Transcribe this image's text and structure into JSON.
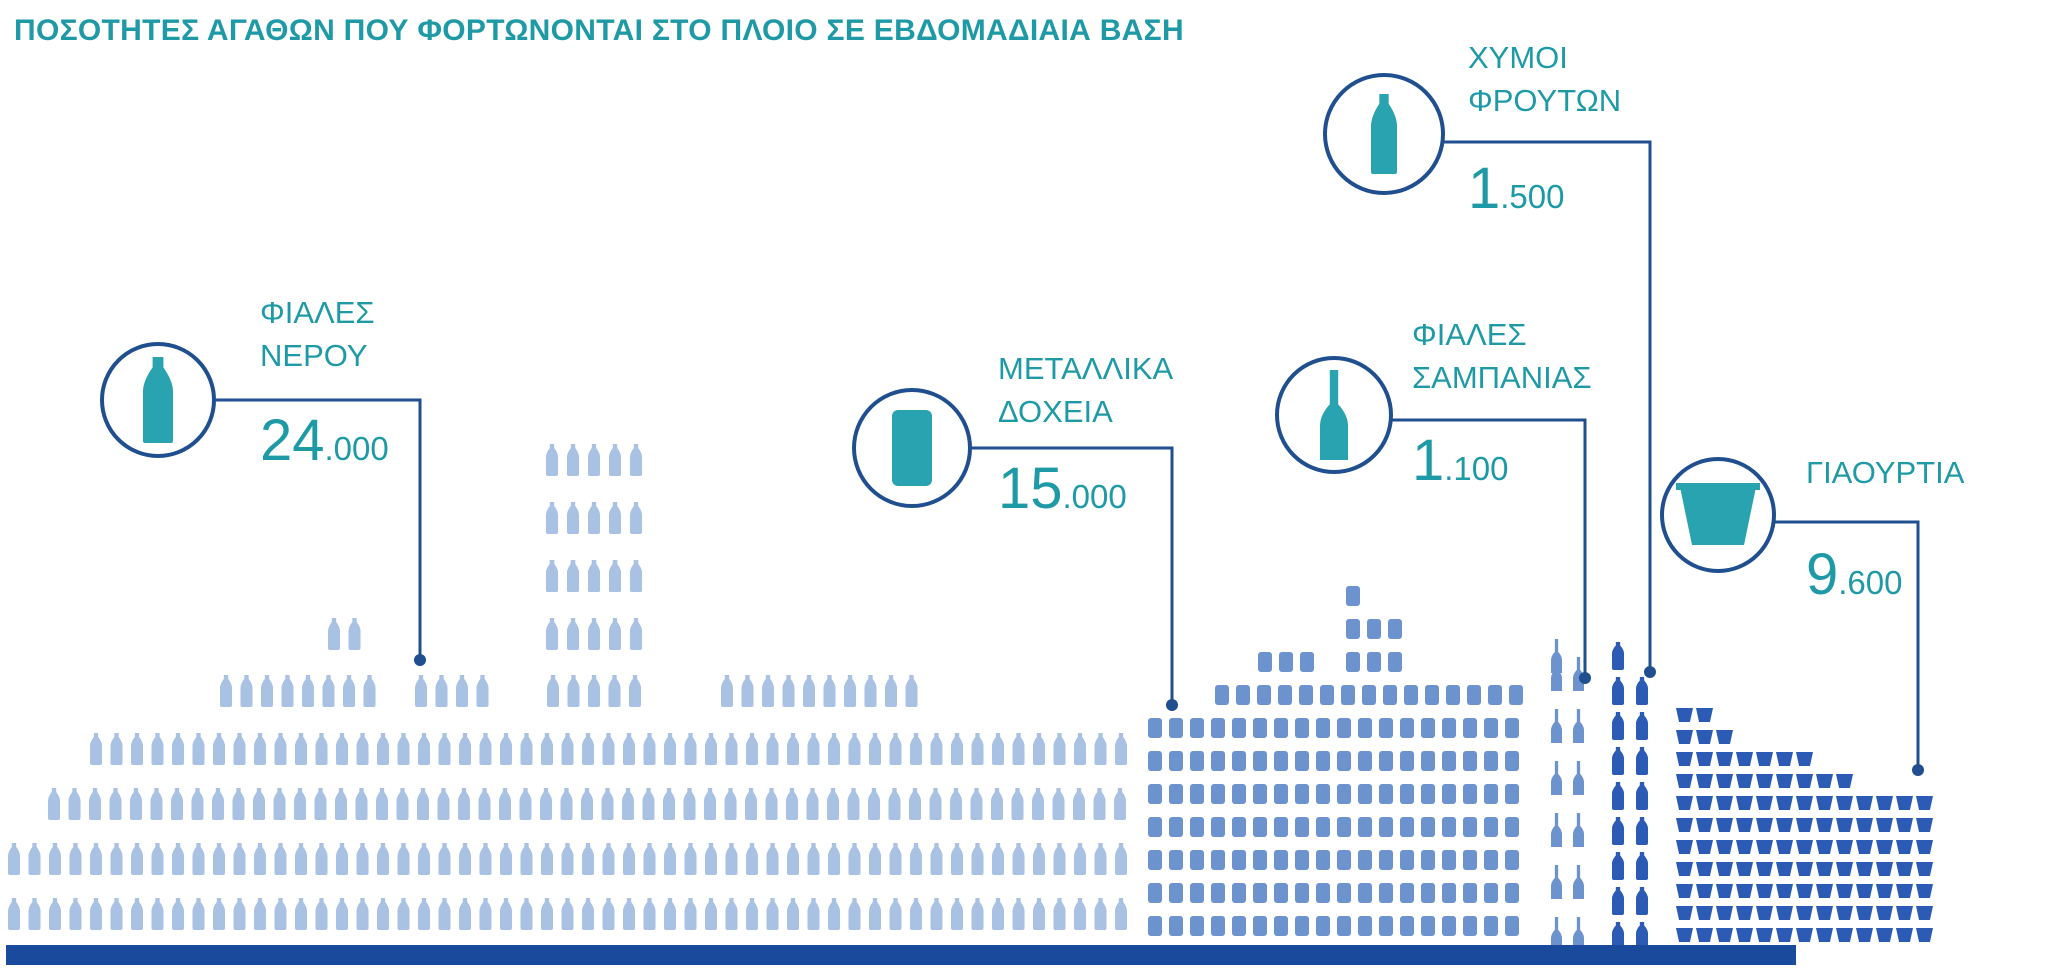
{
  "title": "ΠΟΣΟΤΗΤΕΣ ΑΓΑΘΩΝ ΠΟΥ ΦΟΡΤΩΝΟΝΤΑΙ ΣΤΟ ΠΛΟΙΟ ΣΕ ΕΒΔΟΜΑΔΙΑΙΑ ΒΑΣΗ",
  "colors": {
    "accent_text": "#1e9aa6",
    "icon_fill": "#2aa3b0",
    "circle_stroke": "#1f4f8f",
    "leader_line": "#1f4f8f",
    "light_item": "#a9c2e4",
    "mid_item": "#6d93cf",
    "dark_item": "#2b5bb5",
    "ship_hull": "#1a4a9c"
  },
  "categories": [
    {
      "id": "water",
      "label_lines": [
        "ΦΙΑΛΕΣ",
        "ΝΕΡΟΥ"
      ],
      "value_big": "24",
      "value_small": ".000",
      "icon": "water-bottle-icon"
    },
    {
      "id": "cans",
      "label_lines": [
        "ΜΕΤΑΛΛΙΚΑ",
        "ΔΟΧΕΙΑ"
      ],
      "value_big": "15",
      "value_small": ".000",
      "icon": "metal-can-icon"
    },
    {
      "id": "champagne",
      "label_lines": [
        "ΦΙΑΛΕΣ",
        "ΣΑΜΠΑΝΙΑΣ"
      ],
      "value_big": "1",
      "value_small": ".100",
      "icon": "champagne-bottle-icon"
    },
    {
      "id": "juice",
      "label_lines": [
        "ΧΥΜΟΙ",
        "ΦΡΟΥΤΩΝ"
      ],
      "value_big": "1",
      "value_small": ".500",
      "icon": "juice-bottle-icon"
    },
    {
      "id": "yogurt",
      "label_lines": [
        "ΓΙΑΟΥΡΤΙΑ"
      ],
      "value_big": "9",
      "value_small": ".600",
      "icon": "yogurt-cup-icon"
    }
  ]
}
